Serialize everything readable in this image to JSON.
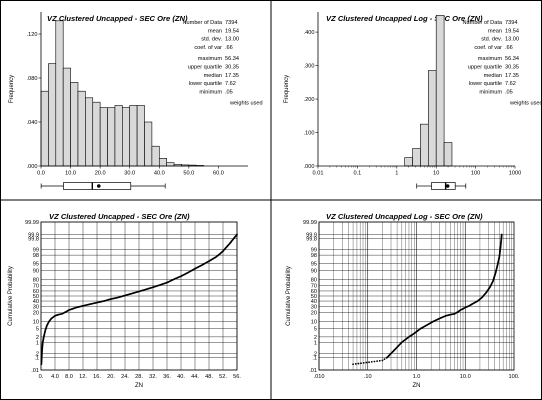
{
  "chart_data": [
    {
      "type": "bar",
      "title": "VZ Clustered Uncapped - SEC Ore (ZN)",
      "xlabel": "",
      "ylabel": "Frequency",
      "xlim": [
        0,
        70
      ],
      "ylim": [
        0,
        0.14
      ],
      "xticks": [
        "0.0",
        "10.0",
        "20.0",
        "30.0",
        "40.0",
        "50.0",
        "60.0"
      ],
      "yticks": [
        ".000",
        ".040",
        ".080",
        ".120"
      ],
      "bins": [
        {
          "x0": 0,
          "x1": 2.5,
          "value": 0.068
        },
        {
          "x0": 2.5,
          "x1": 5,
          "value": 0.093
        },
        {
          "x0": 5,
          "x1": 7.5,
          "value": 0.132
        },
        {
          "x0": 7.5,
          "x1": 10,
          "value": 0.089
        },
        {
          "x0": 10,
          "x1": 12.5,
          "value": 0.076
        },
        {
          "x0": 12.5,
          "x1": 15,
          "value": 0.068
        },
        {
          "x0": 15,
          "x1": 17.5,
          "value": 0.062
        },
        {
          "x0": 17.5,
          "x1": 20,
          "value": 0.058
        },
        {
          "x0": 20,
          "x1": 22.5,
          "value": 0.053
        },
        {
          "x0": 22.5,
          "x1": 25,
          "value": 0.053
        },
        {
          "x0": 25,
          "x1": 27.5,
          "value": 0.055
        },
        {
          "x0": 27.5,
          "x1": 30,
          "value": 0.053
        },
        {
          "x0": 30,
          "x1": 32.5,
          "value": 0.055
        },
        {
          "x0": 32.5,
          "x1": 35,
          "value": 0.055
        },
        {
          "x0": 35,
          "x1": 37.5,
          "value": 0.04
        },
        {
          "x0": 37.5,
          "x1": 40,
          "value": 0.018
        },
        {
          "x0": 40,
          "x1": 42.5,
          "value": 0.007
        },
        {
          "x0": 42.5,
          "x1": 45,
          "value": 0.003
        },
        {
          "x0": 45,
          "x1": 47.5,
          "value": 0.0015
        },
        {
          "x0": 47.5,
          "x1": 50,
          "value": 0.001
        },
        {
          "x0": 50,
          "x1": 52.5,
          "value": 0.0008
        },
        {
          "x0": 52.5,
          "x1": 55,
          "value": 0.0005
        }
      ],
      "boxplot": {
        "whisker_low": 0.05,
        "q1": 7.62,
        "median": 17.35,
        "mean": 19.54,
        "q3": 30.35,
        "whisker_high": 42
      },
      "stats": [
        {
          "label": "Number of Data",
          "value": "7394"
        },
        {
          "label": "mean",
          "value": "19.54"
        },
        {
          "label": "std. dev.",
          "value": "13.00"
        },
        {
          "label": "coef. of var",
          "value": ".66"
        },
        {
          "label": "maximum",
          "value": "56.34"
        },
        {
          "label": "upper quartile",
          "value": "30.35"
        },
        {
          "label": "median",
          "value": "17.35"
        },
        {
          "label": "lower quartile",
          "value": "7.62"
        },
        {
          "label": "minimum",
          "value": ".05"
        },
        {
          "label": "weights used",
          "value": ""
        }
      ]
    },
    {
      "type": "bar",
      "title": "VZ Clustered Uncapped Log - SEC Ore (ZN)",
      "xlabel": "",
      "ylabel": "Frequency",
      "x_scale": "log",
      "xlim": [
        0.01,
        1000
      ],
      "ylim": [
        0,
        0.46
      ],
      "xticks": [
        "0.01",
        "0.1",
        "1",
        "10",
        "100",
        "1000"
      ],
      "yticks": [
        ".000",
        ".100",
        ".200",
        ".300",
        ".400"
      ],
      "bins": [
        {
          "x0": 1.585,
          "x1": 2.512,
          "value": 0.025
        },
        {
          "x0": 2.512,
          "x1": 3.981,
          "value": 0.052
        },
        {
          "x0": 3.981,
          "x1": 6.31,
          "value": 0.125
        },
        {
          "x0": 6.31,
          "x1": 10,
          "value": 0.285
        },
        {
          "x0": 10,
          "x1": 15.85,
          "value": 0.45
        },
        {
          "x0": 15.85,
          "x1": 25.12,
          "value": 0.07
        }
      ],
      "boxplot": {
        "whisker_low": 3.2,
        "q1": 7.62,
        "median": 17.35,
        "mean": 19.54,
        "q3": 30.35,
        "whisker_high": 56.34
      },
      "stats": [
        {
          "label": "Number of Data",
          "value": "7394"
        },
        {
          "label": "mean",
          "value": "19.54"
        },
        {
          "label": "std. dev.",
          "value": "13.00"
        },
        {
          "label": "coef. of var",
          "value": ".66"
        },
        {
          "label": "maximum",
          "value": "56.34"
        },
        {
          "label": "upper quartile",
          "value": "30.35"
        },
        {
          "label": "median",
          "value": "17.35"
        },
        {
          "label": "lower quartile",
          "value": "7.62"
        },
        {
          "label": "minimum",
          "value": ".05"
        },
        {
          "label": "weights used",
          "value": ""
        }
      ]
    },
    {
      "type": "scatter",
      "title": "VZ Clustered Uncapped - SEC Ore (ZN)",
      "xlabel": "ZN",
      "ylabel": "Cumulative Probability",
      "y_scale": "normal-probability",
      "xlim": [
        0,
        56
      ],
      "xticks": [
        "0.",
        "4.0",
        "8.0",
        "12.",
        "16.",
        "20.",
        "24.",
        "28.",
        "32.",
        "36.",
        "40.",
        "44.",
        "48.",
        "52.",
        "56."
      ],
      "yticks": [
        ".01",
        ".1",
        ".2",
        "1",
        "2",
        "5",
        "10",
        "20",
        "30",
        "40",
        "50",
        "60",
        "70",
        "80",
        "90",
        "95",
        "98",
        "99",
        "99.8",
        "99.9",
        "99.99"
      ],
      "curve": [
        [
          0.1,
          0.03
        ],
        [
          0.3,
          0.3
        ],
        [
          0.5,
          1
        ],
        [
          0.8,
          2
        ],
        [
          1.2,
          4
        ],
        [
          1.7,
          7
        ],
        [
          2.3,
          10
        ],
        [
          3,
          13
        ],
        [
          4,
          16
        ],
        [
          5,
          17.5
        ],
        [
          6,
          18.5
        ],
        [
          7,
          21
        ],
        [
          8,
          24
        ],
        [
          10,
          28
        ],
        [
          12,
          31
        ],
        [
          14,
          34
        ],
        [
          16,
          37
        ],
        [
          18,
          40
        ],
        [
          20,
          44
        ],
        [
          22,
          47
        ],
        [
          24,
          51
        ],
        [
          26,
          55
        ],
        [
          28,
          59
        ],
        [
          30,
          63
        ],
        [
          32,
          67
        ],
        [
          34,
          71
        ],
        [
          36,
          75
        ],
        [
          38,
          80
        ],
        [
          40,
          84
        ],
        [
          42,
          88
        ],
        [
          44,
          91.5
        ],
        [
          46,
          94
        ],
        [
          48,
          96
        ],
        [
          50,
          97.5
        ],
        [
          51,
          98.2
        ],
        [
          52,
          98.8
        ],
        [
          53,
          99.3
        ],
        [
          54,
          99.6
        ],
        [
          55,
          99.8
        ],
        [
          56,
          99.9
        ]
      ]
    },
    {
      "type": "scatter",
      "title": "VZ Clustered Uncapped Log - SEC Ore (ZN)",
      "xlabel": "ZN",
      "ylabel": "Cumulative Probability",
      "x_scale": "log",
      "y_scale": "normal-probability",
      "xlim": [
        0.01,
        100
      ],
      "xticks": [
        ".010",
        ".10",
        "1.0",
        "10.0",
        "100."
      ],
      "yticks": [
        ".01",
        ".1",
        ".2",
        "1",
        "2",
        "5",
        "10",
        "20",
        "30",
        "40",
        "50",
        "60",
        "70",
        "80",
        "90",
        "95",
        "98",
        "99",
        "99.8",
        "99.9",
        "99.99"
      ],
      "curve": [
        [
          0.05,
          0.03
        ],
        [
          0.2,
          0.06
        ],
        [
          0.25,
          0.1
        ],
        [
          0.4,
          0.5
        ],
        [
          0.5,
          1
        ],
        [
          0.7,
          2
        ],
        [
          0.9,
          3
        ],
        [
          1.2,
          5
        ],
        [
          1.6,
          7
        ],
        [
          2.2,
          10
        ],
        [
          3,
          13
        ],
        [
          4,
          16
        ],
        [
          5,
          17.5
        ],
        [
          6,
          18.5
        ],
        [
          7,
          21
        ],
        [
          8,
          24
        ],
        [
          10,
          28
        ],
        [
          12,
          31
        ],
        [
          15,
          36
        ],
        [
          18,
          40
        ],
        [
          22,
          47
        ],
        [
          27,
          57
        ],
        [
          32,
          67
        ],
        [
          37,
          77
        ],
        [
          42,
          88
        ],
        [
          46,
          94
        ],
        [
          50,
          97.5
        ],
        [
          53,
          99.3
        ],
        [
          56,
          99.9
        ]
      ]
    }
  ]
}
